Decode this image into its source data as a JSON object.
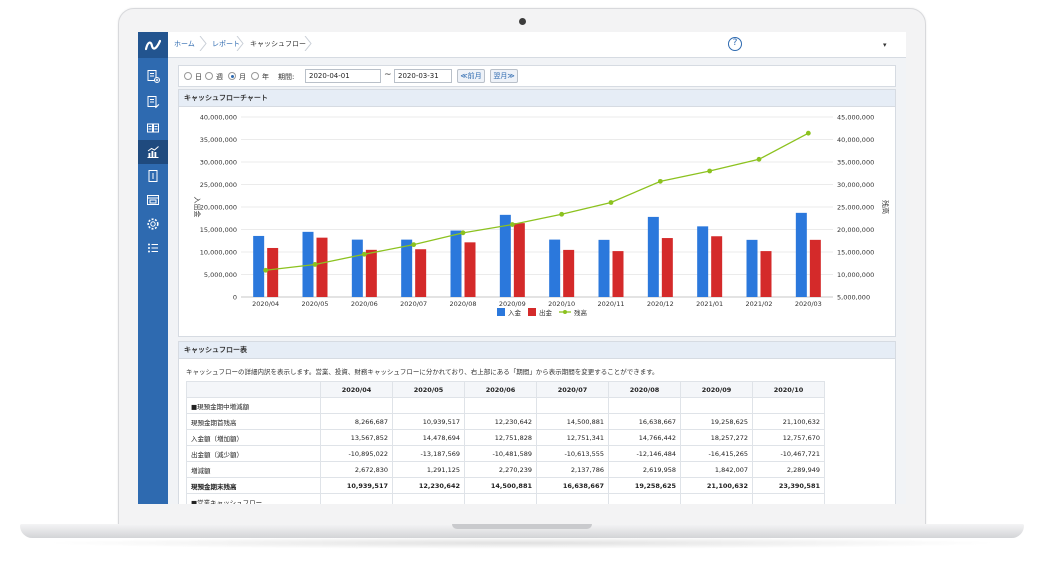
{
  "breadcrumb": [
    "ホーム",
    "レポート",
    "キャッシュフロー"
  ],
  "help_icon": "question-circle-icon",
  "menu_caret": "▾",
  "sidebar": {
    "logo": "app-logo-icon",
    "items": [
      {
        "icon": "journal-add-icon"
      },
      {
        "icon": "journal-edit-icon"
      },
      {
        "icon": "ledger-book-icon"
      },
      {
        "icon": "report-chart-icon",
        "active": true
      },
      {
        "icon": "document-icon"
      },
      {
        "icon": "window-icon"
      },
      {
        "icon": "gear-icon"
      },
      {
        "icon": "list-icon"
      }
    ]
  },
  "filter": {
    "periods": [
      {
        "label": "日",
        "selected": false
      },
      {
        "label": "週",
        "selected": false
      },
      {
        "label": "月",
        "selected": true
      },
      {
        "label": "年",
        "selected": false
      }
    ],
    "period_label": "期間:",
    "start_date": "2020-04-01",
    "tilde": "~",
    "end_date": "2020-03-31",
    "prev_label": "≪前月",
    "next_label": "翌月≫"
  },
  "chart_panel_title": "キャッシュフローチャート",
  "chart_data": {
    "type": "bar",
    "categories": [
      "2020/04",
      "2020/05",
      "2020/06",
      "2020/07",
      "2020/08",
      "2020/09",
      "2020/10",
      "2020/11",
      "2020/12",
      "2021/01",
      "2021/02",
      "2020/03"
    ],
    "series": [
      {
        "name": "入金",
        "type": "bar",
        "axis": "left",
        "color": "#2b78dc",
        "values": [
          13567852,
          14478694,
          12751828,
          12751341,
          14766442,
          18257272,
          12757670,
          12700000,
          17800000,
          15700000,
          12700000,
          18700000
        ]
      },
      {
        "name": "出金",
        "type": "bar",
        "axis": "left",
        "color": "#d42a2a",
        "values": [
          10895022,
          13187569,
          10481589,
          10613555,
          12146484,
          16415265,
          10467721,
          10200000,
          13100000,
          13500000,
          10200000,
          12700000
        ]
      },
      {
        "name": "残高",
        "type": "line",
        "axis": "right",
        "color": "#8cc21f",
        "values": [
          10939517,
          12230642,
          14500881,
          16638667,
          19258625,
          21100632,
          23390581,
          26000000,
          30700000,
          33000000,
          35600000,
          41400000
        ]
      }
    ],
    "ylabel": "入出金",
    "y2label": "残高",
    "ylim": [
      0,
      40000000
    ],
    "y2lim": [
      5000000,
      45000000
    ],
    "yticks": [
      "40,000,000",
      "35,000,000",
      "30,000,000",
      "25,000,000",
      "20,000,000",
      "15,000,000",
      "10,000,000",
      "5,000,000",
      "0"
    ],
    "y2ticks": [
      "45,000,000",
      "40,000,000",
      "35,000,000",
      "30,000,000",
      "25,000,000",
      "20,000,000",
      "15,000,000",
      "10,000,000",
      "5,000,000"
    ],
    "legend": [
      "入金",
      "出金",
      "残高"
    ],
    "legend_position": "bottom",
    "grid": true
  },
  "table_panel": {
    "title": "キャッシュフロー表",
    "description": "キャッシュフローの詳細内訳を表示します。営業、投資、財務キャッシュフローに分かれており、右上部にある「期間」から表示期間を変更することができます。",
    "columns": [
      "",
      "2020/04",
      "2020/05",
      "2020/06",
      "2020/07",
      "2020/08",
      "2020/09",
      "2020/10"
    ],
    "rows": [
      {
        "label": "■現預金期中増減額",
        "values": [
          "",
          "",
          "",
          "",
          "",
          "",
          ""
        ],
        "bold": false
      },
      {
        "label": "現預金期首残高",
        "values": [
          "8,266,687",
          "10,939,517",
          "12,230,642",
          "14,500,881",
          "16,638,667",
          "19,258,625",
          "21,100,632"
        ],
        "bold": false
      },
      {
        "label": "入金額（増加額）",
        "values": [
          "13,567,852",
          "14,478,694",
          "12,751,828",
          "12,751,341",
          "14,766,442",
          "18,257,272",
          "12,757,670"
        ],
        "bold": false
      },
      {
        "label": "出金額（減少額）",
        "values": [
          "-10,895,022",
          "-13,187,569",
          "-10,481,589",
          "-10,613,555",
          "-12,146,484",
          "-16,415,265",
          "-10,467,721"
        ],
        "bold": false
      },
      {
        "label": "増減額",
        "values": [
          "2,672,830",
          "1,291,125",
          "2,270,239",
          "2,137,786",
          "2,619,958",
          "1,842,007",
          "2,289,949"
        ],
        "bold": false
      },
      {
        "label": "現預金期末残高",
        "values": [
          "10,939,517",
          "12,230,642",
          "14,500,881",
          "16,638,667",
          "19,258,625",
          "21,100,632",
          "23,390,581"
        ],
        "bold": true
      },
      {
        "label": "■営業キャッシュフロー",
        "values": [
          "",
          "",
          "",
          "",
          "",
          "",
          ""
        ],
        "bold": false
      }
    ]
  }
}
